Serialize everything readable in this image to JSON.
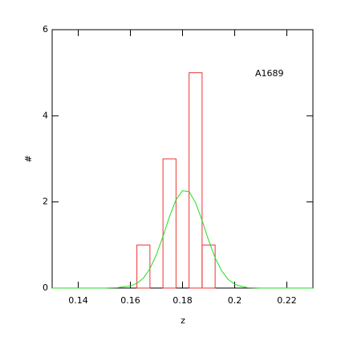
{
  "chart_data": {
    "type": "histogram",
    "annotation": "A1689",
    "x_label": "z",
    "y_label": "#",
    "bins": [
      0.1625,
      0.1675,
      0.1725,
      0.1775,
      0.1825,
      0.1875,
      0.1925
    ],
    "values": [
      1,
      0,
      3,
      0,
      5,
      1
    ],
    "color": "#ee3333",
    "xlim": [
      0.13,
      0.23
    ],
    "ylim": [
      0,
      6
    ],
    "xticks": [
      0.14,
      0.16,
      0.18,
      0.2,
      0.22
    ],
    "yticks": [
      0,
      2,
      4,
      6
    ],
    "curve": {
      "type": "line",
      "color": "#22dd22",
      "x": [
        0.13,
        0.14,
        0.15,
        0.155,
        0.16,
        0.1625,
        0.165,
        0.1675,
        0.17,
        0.1725,
        0.175,
        0.1775,
        0.18,
        0.1825,
        0.185,
        0.1875,
        0.19,
        0.1925,
        0.195,
        0.1975,
        0.2,
        0.2025,
        0.205,
        0.21,
        0.22,
        0.23
      ],
      "values": [
        0,
        0,
        0,
        0.01,
        0.05,
        0.11,
        0.23,
        0.45,
        0.78,
        1.2,
        1.66,
        2.05,
        2.26,
        2.24,
        1.98,
        1.57,
        1.11,
        0.7,
        0.4,
        0.2,
        0.09,
        0.04,
        0.01,
        0,
        0,
        0
      ]
    }
  }
}
